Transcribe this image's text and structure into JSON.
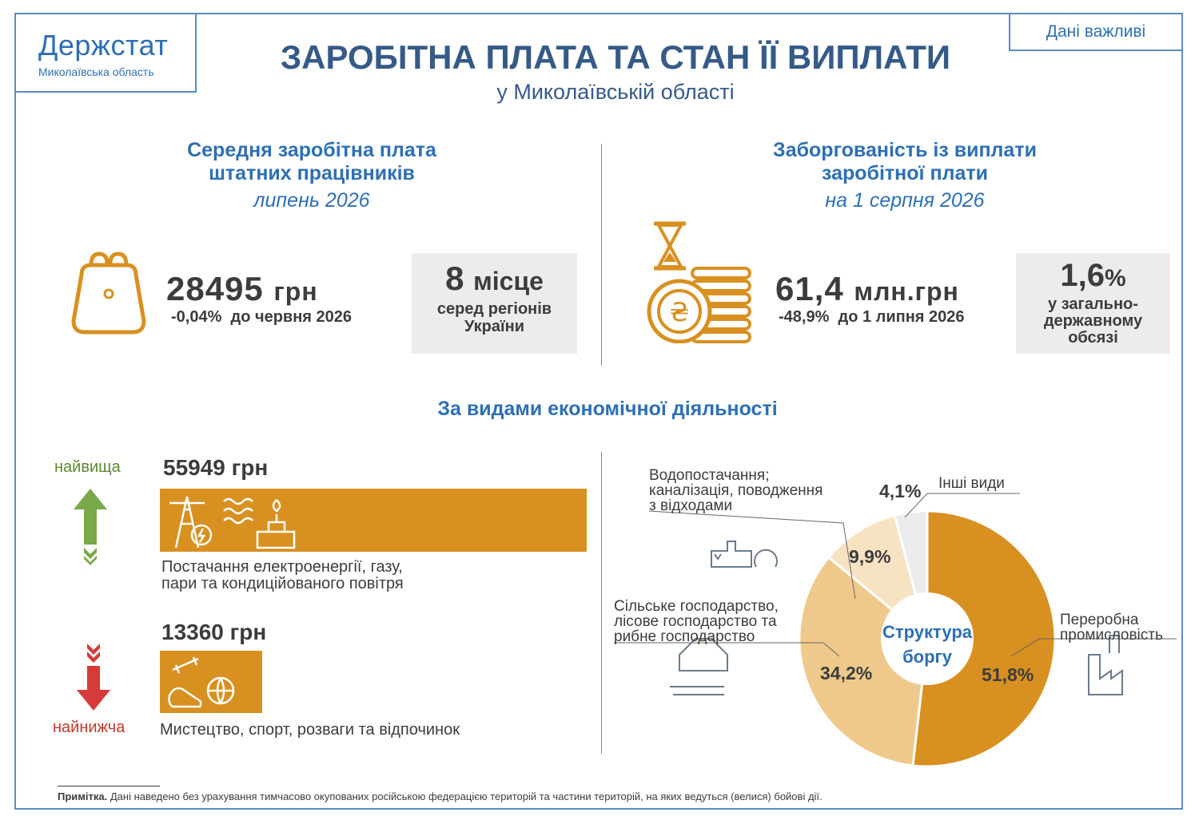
{
  "header": {
    "logo_name": "Держстат",
    "logo_region": "Миколаївська область",
    "badge": "Дані важливі",
    "title": "ЗАРОБІТНА ПЛАТА ТА СТАН ЇЇ ВИПЛАТИ",
    "subtitle": "у Миколаївській області"
  },
  "salary": {
    "heading_line1": "Середня заробітна плата",
    "heading_line2": "штатних працівників",
    "period": "липень 2026",
    "value": "28495",
    "unit": "грн",
    "delta_pct": "-0,04%",
    "delta_text": "до червня 2026",
    "rank_number": "8",
    "rank_word": "місце",
    "rank_line1": "серед регіонів",
    "rank_line2": "України"
  },
  "debt": {
    "heading_line1": "Заборгованість із виплати",
    "heading_line2": "заробітної плати",
    "period": "на 1 серпня 2026",
    "value": "61,4",
    "unit": "млн.грн",
    "delta_pct": "-48,9%",
    "delta_text": "до 1 липня 2026",
    "share_value": "1,6",
    "share_sign": "%",
    "share_line1": "у загально-",
    "share_line2": "державному",
    "share_line3": "обсязі"
  },
  "activity": {
    "section_title": "За видами економічної діяльності",
    "highest_label": "найвища",
    "highest_value": "55949 грн",
    "highest_desc_line1": "Постачання електроенергії, газу,",
    "highest_desc_line2": "пари та кондиційованого повітря",
    "lowest_label": "найнижча",
    "lowest_value": "13360 грн",
    "lowest_desc": "Мистецтво, спорт, розваги та відпочинок"
  },
  "chart_data": {
    "type": "pie",
    "title": "Структура боргу",
    "title_line1": "Структура",
    "title_line2": "боргу",
    "slices": [
      {
        "label": "Переробна промисловість",
        "value": 51.8,
        "display": "51,8%",
        "color": "#d89020"
      },
      {
        "label": "Сільське господарство, лісове господарство та рибне господарство",
        "value": 34.2,
        "display": "34,2%",
        "color": "#efc98b"
      },
      {
        "label": "Водопостачання; каналізація, поводження з відходами",
        "value": 9.9,
        "display": "9,9%",
        "color": "#f7e3c2"
      },
      {
        "label": "Інші види",
        "value": 4.1,
        "display": "4,1%",
        "color": "#ececec"
      }
    ]
  },
  "chart_labels": {
    "manufacturing_line1": "Переробна",
    "manufacturing_line2": "промисловість",
    "agriculture_line1": "Сільське господарство,",
    "agriculture_line2": "лісове господарство та",
    "agriculture_line3": "рибне господарство",
    "water_line1": "Водопостачання;",
    "water_line2": "каналізація, поводження",
    "water_line3": "з відходами",
    "other": "Інші види"
  },
  "note": {
    "label": "Примітка.",
    "text": "Дані наведено без урахування тимчасово окупованих російською федерацією територій та частини територій, на яких ведуться (велися) бойові дії."
  },
  "colors": {
    "accent_orange": "#d89020",
    "brand_blue": "#2d6fb4",
    "title_blue": "#355a87",
    "up_green": "#7aa84a",
    "down_red": "#d63a3a"
  }
}
